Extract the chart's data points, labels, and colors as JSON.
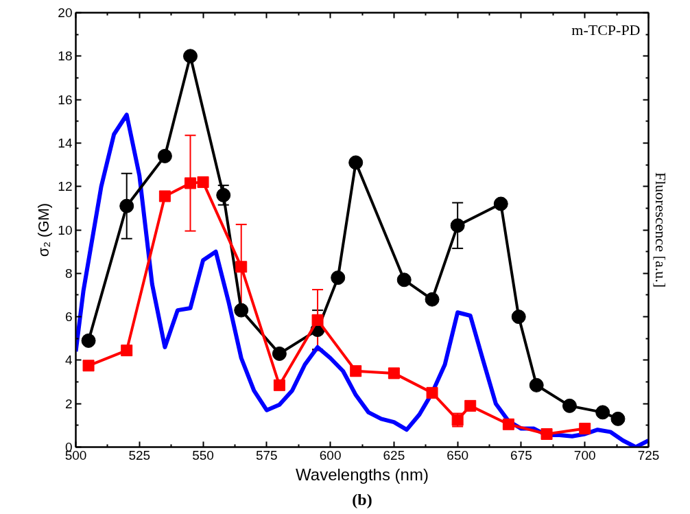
{
  "chart_data": {
    "type": "line",
    "xlabel": "Wavelengths (nm)",
    "ylabel": "σ₂ (GM)",
    "y2label": "Fluorescence [a.u.]",
    "annotations": [
      "m-TCP-PD",
      "(b)"
    ],
    "xlim": [
      500,
      725
    ],
    "xticks": [
      500,
      525,
      550,
      575,
      600,
      625,
      650,
      675,
      700,
      725
    ],
    "ylim": [
      0,
      20
    ],
    "yticks": [
      0,
      2,
      4,
      6,
      8,
      10,
      12,
      14,
      16,
      18,
      20
    ],
    "grid": false,
    "line_style": "solid",
    "series": [
      {
        "color": "#0000ff",
        "marker": "none",
        "x": [
          500,
          503,
          510,
          515,
          520,
          525,
          530,
          535,
          540,
          545,
          550,
          555,
          560,
          565,
          570,
          575,
          580,
          585,
          590,
          595,
          600,
          605,
          610,
          615,
          620,
          625,
          630,
          635,
          640,
          645,
          650,
          655,
          660,
          665,
          670,
          675,
          680,
          685,
          690,
          695,
          700,
          705,
          710,
          715,
          720,
          725
        ],
        "values": [
          4.4,
          7.2,
          12,
          14.4,
          15.3,
          12.5,
          7.5,
          4.6,
          6.3,
          6.4,
          8.6,
          9.0,
          6.7,
          4.1,
          2.6,
          1.7,
          1.95,
          2.6,
          3.8,
          4.6,
          4.1,
          3.5,
          2.4,
          1.6,
          1.3,
          1.15,
          0.8,
          1.5,
          2.5,
          3.8,
          6.2,
          6.05,
          4.0,
          2.0,
          1.2,
          0.85,
          0.85,
          0.55,
          0.55,
          0.5,
          0.6,
          0.8,
          0.7,
          0.3,
          0.0,
          0.3
        ]
      },
      {
        "color": "#000000",
        "marker": "circle",
        "x": [
          505,
          520,
          535,
          545,
          558,
          565,
          580,
          595,
          603,
          610,
          629,
          640,
          650,
          667,
          674,
          681,
          694,
          707,
          713
        ],
        "values": [
          4.9,
          11.1,
          13.4,
          18.0,
          11.6,
          6.3,
          4.3,
          5.4,
          7.8,
          13.1,
          7.7,
          6.8,
          10.2,
          11.2,
          6.0,
          2.85,
          1.9,
          1.6,
          1.3
        ],
        "errors": [
          null,
          1.5,
          null,
          null,
          0.45,
          null,
          null,
          0.9,
          null,
          null,
          null,
          null,
          1.05,
          null,
          null,
          null,
          null,
          null,
          null
        ]
      },
      {
        "color": "#ff0000",
        "marker": "square",
        "x": [
          505,
          520,
          535,
          545,
          550,
          565,
          580,
          595,
          610,
          625,
          640,
          650,
          655,
          670,
          685,
          700
        ],
        "values": [
          3.75,
          4.45,
          11.55,
          12.15,
          12.2,
          8.3,
          2.85,
          5.85,
          3.5,
          3.4,
          2.5,
          1.25,
          1.9,
          1.05,
          0.6,
          0.85
        ],
        "errors": [
          null,
          null,
          null,
          2.2,
          null,
          1.95,
          null,
          1.4,
          null,
          null,
          null,
          0.3,
          null,
          null,
          null,
          null
        ]
      }
    ]
  }
}
